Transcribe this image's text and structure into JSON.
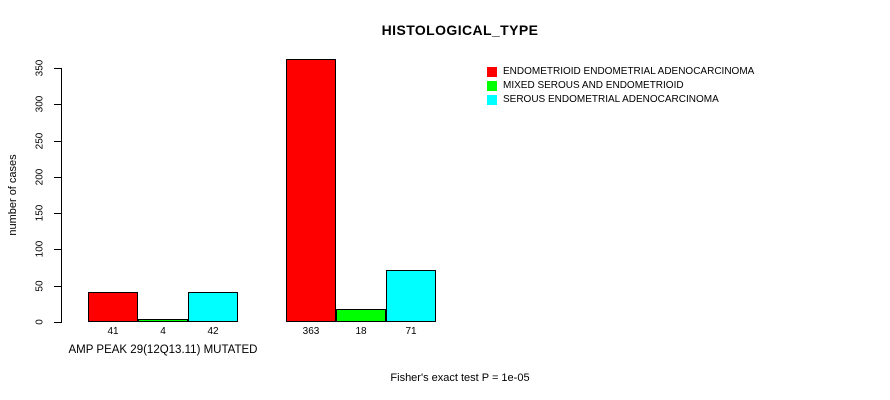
{
  "background_color": "#FFFFFF",
  "text_color": "#000000",
  "chart_data": {
    "type": "bar",
    "title": "HISTOLOGICAL_TYPE",
    "xlabel": "",
    "ylabel": "number of cases",
    "ylim": [
      0,
      350
    ],
    "yticks": [
      0,
      50,
      100,
      150,
      200,
      250,
      300,
      350
    ],
    "grid": false,
    "bar_borders": true,
    "categories": [
      "AMP PEAK 29(12Q13.11) MUTATED",
      ""
    ],
    "series": [
      {
        "name": "ENDOMETRIOID ENDOMETRIAL ADENOCARCINOMA",
        "color": "#FF0000",
        "values": [
          41,
          363
        ]
      },
      {
        "name": "MIXED SEROUS AND ENDOMETRIOID",
        "color": "#00FF00",
        "values": [
          4,
          18
        ]
      },
      {
        "name": "SEROUS ENDOMETRIAL ADENOCARCINOMA",
        "color": "#00FFFF",
        "values": [
          42,
          71
        ]
      }
    ],
    "bar_value_labels_shown": true,
    "legend_position": "top-right",
    "annotation": "Fisher's exact test P = 1e-05"
  }
}
